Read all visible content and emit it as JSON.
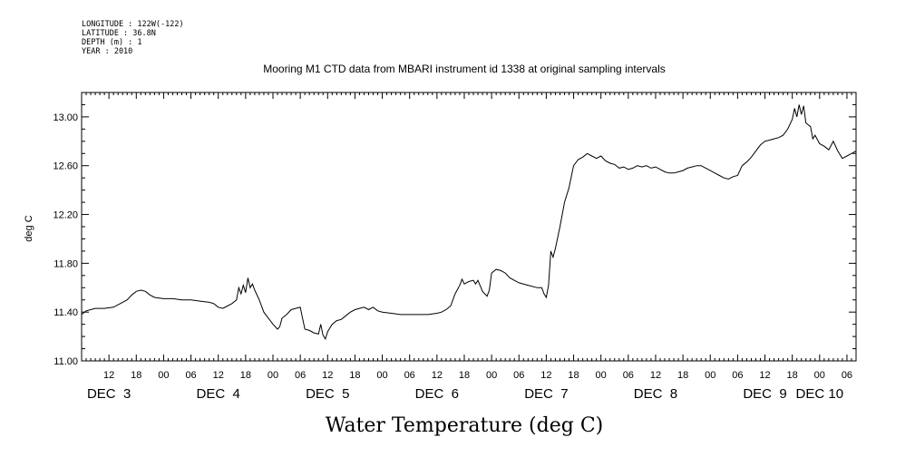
{
  "header": {
    "lines": [
      "LONGITUDE : 122W(-122)",
      "LATITUDE : 36.8N",
      "DEPTH (m) : 1",
      "YEAR : 2010"
    ]
  },
  "chart_data": {
    "type": "line",
    "title": "Mooring M1 CTD data from MBARI instrument id 1338 at original sampling intervals",
    "xlabel": "Water Temperature (deg C)",
    "ylabel": "deg C",
    "ylim": [
      11.0,
      13.2
    ],
    "xlim_hours": [
      0,
      170
    ],
    "yticks": [
      "11.00",
      "11.40",
      "11.80",
      "12.20",
      "12.60",
      "13.00"
    ],
    "hour_ticks": [
      "12",
      "18",
      "00",
      "06",
      "12",
      "18",
      "00",
      "06",
      "12",
      "18",
      "00",
      "06",
      "12",
      "18",
      "00",
      "06",
      "12",
      "18",
      "00",
      "06",
      "12",
      "18",
      "00",
      "06",
      "12",
      "18",
      "00",
      "06"
    ],
    "day_labels": [
      "DEC  3",
      "DEC  4",
      "DEC  5",
      "DEC  6",
      "DEC  7",
      "DEC  8",
      "DEC  9",
      "DEC 10"
    ],
    "grid": false,
    "series": [
      {
        "color": "#000000",
        "points": [
          [
            0,
            11.38
          ],
          [
            1,
            11.41
          ],
          [
            2,
            11.42
          ],
          [
            3,
            11.43
          ],
          [
            5,
            11.43
          ],
          [
            7,
            11.44
          ],
          [
            8,
            11.46
          ],
          [
            9,
            11.48
          ],
          [
            10,
            11.5
          ],
          [
            11,
            11.54
          ],
          [
            12,
            11.57
          ],
          [
            13,
            11.58
          ],
          [
            14,
            11.57
          ],
          [
            15,
            11.54
          ],
          [
            16,
            11.52
          ],
          [
            18,
            11.51
          ],
          [
            20,
            11.51
          ],
          [
            22,
            11.5
          ],
          [
            24,
            11.5
          ],
          [
            26,
            11.49
          ],
          [
            28,
            11.48
          ],
          [
            29,
            11.47
          ],
          [
            30,
            11.44
          ],
          [
            31,
            11.43
          ],
          [
            32,
            11.45
          ],
          [
            33,
            11.47
          ],
          [
            34,
            11.5
          ],
          [
            34.5,
            11.6
          ],
          [
            35,
            11.55
          ],
          [
            35.5,
            11.62
          ],
          [
            36,
            11.56
          ],
          [
            36.5,
            11.68
          ],
          [
            37,
            11.6
          ],
          [
            37.5,
            11.63
          ],
          [
            38,
            11.58
          ],
          [
            39,
            11.5
          ],
          [
            40,
            11.4
          ],
          [
            41,
            11.35
          ],
          [
            42,
            11.3
          ],
          [
            43,
            11.26
          ],
          [
            43.5,
            11.28
          ],
          [
            44,
            11.35
          ],
          [
            45,
            11.38
          ],
          [
            46,
            11.42
          ],
          [
            47,
            11.43
          ],
          [
            48,
            11.44
          ],
          [
            48.5,
            11.35
          ],
          [
            49,
            11.26
          ],
          [
            50,
            11.25
          ],
          [
            51,
            11.23
          ],
          [
            52,
            11.22
          ],
          [
            52.5,
            11.3
          ],
          [
            53,
            11.21
          ],
          [
            53.5,
            11.18
          ],
          [
            54,
            11.24
          ],
          [
            55,
            11.3
          ],
          [
            56,
            11.33
          ],
          [
            57,
            11.34
          ],
          [
            58,
            11.37
          ],
          [
            59,
            11.4
          ],
          [
            60,
            11.42
          ],
          [
            61,
            11.43
          ],
          [
            62,
            11.44
          ],
          [
            63,
            11.42
          ],
          [
            64,
            11.44
          ],
          [
            65,
            11.41
          ],
          [
            66,
            11.4
          ],
          [
            68,
            11.39
          ],
          [
            70,
            11.38
          ],
          [
            72,
            11.38
          ],
          [
            74,
            11.38
          ],
          [
            76,
            11.38
          ],
          [
            78,
            11.39
          ],
          [
            79,
            11.4
          ],
          [
            80,
            11.42
          ],
          [
            81,
            11.45
          ],
          [
            82,
            11.55
          ],
          [
            83,
            11.62
          ],
          [
            83.5,
            11.67
          ],
          [
            84,
            11.63
          ],
          [
            85,
            11.65
          ],
          [
            86,
            11.66
          ],
          [
            86.5,
            11.63
          ],
          [
            87,
            11.66
          ],
          [
            88,
            11.57
          ],
          [
            89,
            11.53
          ],
          [
            89.5,
            11.58
          ],
          [
            90,
            11.72
          ],
          [
            91,
            11.75
          ],
          [
            92,
            11.74
          ],
          [
            93,
            11.72
          ],
          [
            94,
            11.68
          ],
          [
            95,
            11.66
          ],
          [
            96,
            11.64
          ],
          [
            98,
            11.62
          ],
          [
            100,
            11.6
          ],
          [
            101,
            11.6
          ],
          [
            101.5,
            11.55
          ],
          [
            102,
            11.52
          ],
          [
            102.5,
            11.62
          ],
          [
            103,
            11.9
          ],
          [
            103.5,
            11.85
          ],
          [
            104,
            11.92
          ],
          [
            105,
            12.1
          ],
          [
            106,
            12.3
          ],
          [
            107,
            12.42
          ],
          [
            108,
            12.6
          ],
          [
            109,
            12.65
          ],
          [
            110,
            12.67
          ],
          [
            111,
            12.7
          ],
          [
            112,
            12.68
          ],
          [
            113,
            12.66
          ],
          [
            114,
            12.68
          ],
          [
            115,
            12.64
          ],
          [
            116,
            12.62
          ],
          [
            117,
            12.61
          ],
          [
            118,
            12.58
          ],
          [
            119,
            12.59
          ],
          [
            120,
            12.57
          ],
          [
            121,
            12.58
          ],
          [
            122,
            12.6
          ],
          [
            123,
            12.59
          ],
          [
            124,
            12.6
          ],
          [
            125,
            12.58
          ],
          [
            126,
            12.59
          ],
          [
            127,
            12.57
          ],
          [
            128,
            12.55
          ],
          [
            129,
            12.54
          ],
          [
            130,
            12.54
          ],
          [
            131,
            12.55
          ],
          [
            132,
            12.56
          ],
          [
            133,
            12.58
          ],
          [
            134,
            12.59
          ],
          [
            135,
            12.6
          ],
          [
            136,
            12.6
          ],
          [
            137,
            12.58
          ],
          [
            138,
            12.56
          ],
          [
            139,
            12.54
          ],
          [
            140,
            12.52
          ],
          [
            141,
            12.5
          ],
          [
            142,
            12.49
          ],
          [
            143,
            12.51
          ],
          [
            144,
            12.52
          ],
          [
            145,
            12.6
          ],
          [
            146,
            12.63
          ],
          [
            147,
            12.67
          ],
          [
            148,
            12.72
          ],
          [
            149,
            12.77
          ],
          [
            150,
            12.8
          ],
          [
            151,
            12.81
          ],
          [
            152,
            12.82
          ],
          [
            153,
            12.83
          ],
          [
            154,
            12.85
          ],
          [
            155,
            12.9
          ],
          [
            156,
            12.98
          ],
          [
            156.5,
            13.07
          ],
          [
            157,
            13.0
          ],
          [
            157.5,
            13.1
          ],
          [
            158,
            13.02
          ],
          [
            158.5,
            13.09
          ],
          [
            159,
            12.95
          ],
          [
            160,
            12.92
          ],
          [
            160.5,
            12.82
          ],
          [
            161,
            12.85
          ],
          [
            162,
            12.78
          ],
          [
            163,
            12.76
          ],
          [
            164,
            12.73
          ],
          [
            165,
            12.8
          ],
          [
            166,
            12.72
          ],
          [
            167,
            12.66
          ],
          [
            168,
            12.68
          ],
          [
            169,
            12.7
          ],
          [
            170,
            12.72
          ]
        ]
      }
    ]
  }
}
